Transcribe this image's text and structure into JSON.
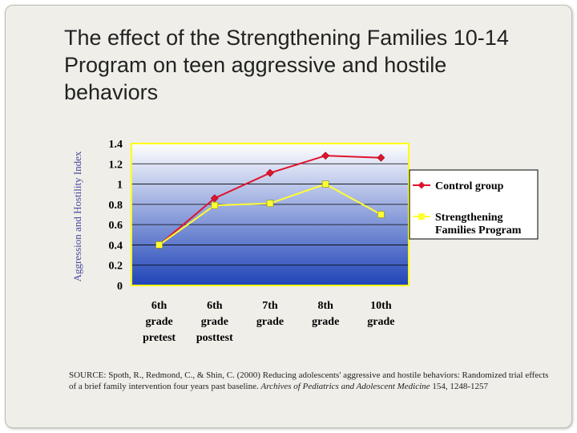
{
  "slide": {
    "title_lines": [
      "The effect of the Strengthening Families 10-14",
      "Program on teen aggressive and hostile",
      "behaviors"
    ],
    "source": {
      "prefix": "SOURCE: Spoth, R., Redmond, C., & Shin, C. (2000) Reducing adolescents' aggressive and hostile behaviors: Randomized trial effects of a brief family intervention four years past baseline.",
      "journal": "Archives of Pediatrics and Adolescent Medicine",
      "suffix": "154, 1248-1257"
    }
  },
  "chart_data": {
    "type": "line",
    "title": "",
    "ylabel": "Aggression and Hostility Index",
    "xlabel": "",
    "categories": [
      [
        "6th",
        "grade",
        "pretest"
      ],
      [
        "6th",
        "grade",
        "posttest"
      ],
      [
        "7th",
        "grade"
      ],
      [
        "8th",
        "grade"
      ],
      [
        "10th",
        "grade"
      ]
    ],
    "ylim": [
      0,
      1.4
    ],
    "yticks": [
      "0",
      "0.2",
      "0.4",
      "0.6",
      "0.8",
      "1",
      "1.2",
      "1.4"
    ],
    "grid": true,
    "legend_position": "right",
    "series": [
      {
        "name": "Control group",
        "values": [
          0.4,
          0.86,
          1.11,
          1.28,
          1.26
        ],
        "color": "#e0142e",
        "marker": "diamond"
      },
      {
        "name": "Strengthening Families Program",
        "name_lines": [
          "Strengthening",
          "Families Program"
        ],
        "values": [
          0.4,
          0.79,
          0.81,
          1.0,
          0.7
        ],
        "color": "#ffff33",
        "marker": "square"
      }
    ],
    "colors": {
      "plot_border": "#ffff00",
      "plot_gradient_top": "#ffffff",
      "plot_gradient_bottom": "#1f44b8",
      "gridline": "#000000"
    }
  }
}
